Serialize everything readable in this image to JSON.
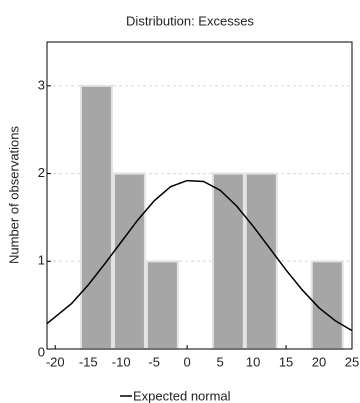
{
  "chart_data": {
    "type": "histogram",
    "title": "Distribution: Excesses",
    "y_label": "Number of observations",
    "bins": [
      -16.25,
      -11.25,
      -6.25,
      -1.25,
      3.75,
      8.75,
      13.75,
      18.75,
      23.75
    ],
    "values": [
      3,
      2,
      1,
      0,
      2,
      2,
      0,
      1
    ],
    "color": "#a6a6a6",
    "xlim": [
      -21.25,
      25
    ],
    "xticks": [
      -20,
      -15,
      -10,
      -5,
      0,
      5,
      10,
      15,
      20,
      25
    ],
    "ylim": [
      0,
      3.5
    ],
    "yticks": [
      0,
      1,
      2,
      3
    ],
    "grid": true,
    "curve": {
      "name": "Expected normal",
      "color": "#000000",
      "x": [
        -21.25,
        -17.5,
        -15,
        -12.5,
        -10,
        -7.5,
        -5,
        -2.5,
        0,
        2.5,
        5,
        7.5,
        10,
        12.5,
        15,
        17.5,
        20,
        22.5,
        25
      ],
      "values": [
        0.29,
        0.52,
        0.73,
        0.97,
        1.22,
        1.47,
        1.69,
        1.85,
        1.92,
        1.91,
        1.81,
        1.63,
        1.4,
        1.15,
        0.9,
        0.67,
        0.47,
        0.32,
        0.21
      ]
    },
    "legend": "bottom"
  }
}
